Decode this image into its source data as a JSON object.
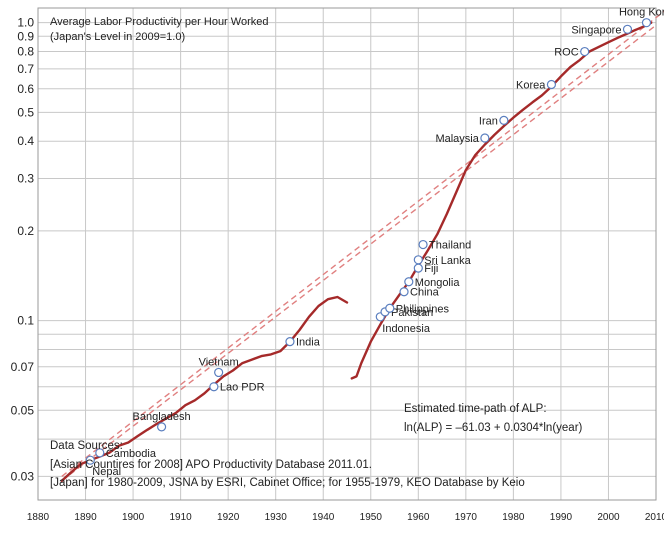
{
  "chart_data": {
    "type": "line",
    "title": "Average Labor Productivity per Hour Worked",
    "subtitle": "(Japan's Level in 2009=1.0)",
    "x_axis": {
      "min": 1880,
      "max": 2010,
      "ticks": [
        1880,
        1890,
        1900,
        1910,
        1920,
        1930,
        1940,
        1950,
        1960,
        1970,
        1980,
        1990,
        2000,
        2010
      ]
    },
    "y_axis": {
      "scale": "log",
      "min": 0.025,
      "max": 1.12,
      "gridlines": [
        0.03,
        0.04,
        0.05,
        0.06,
        0.07,
        0.08,
        0.09,
        0.1,
        0.2,
        0.3,
        0.4,
        0.5,
        0.6,
        0.7,
        0.8,
        0.9,
        1.0
      ],
      "tick_labels": [
        "1.0",
        "0.9",
        "0.8",
        "0.7",
        "0.6",
        "0.5",
        "0.4",
        "0.3",
        "0.2",
        "0.1",
        "0.07",
        "0.05",
        "0.03"
      ],
      "tick_values": [
        1.0,
        0.9,
        0.8,
        0.7,
        0.6,
        0.5,
        0.4,
        0.3,
        0.2,
        0.1,
        0.07,
        0.05,
        0.03
      ]
    },
    "grid": true,
    "series": [
      {
        "color": "#a52a2a",
        "segments": [
          {
            "x": [
              1885,
              1887,
              1889,
              1891,
              1893,
              1895,
              1897,
              1899,
              1901,
              1903,
              1905,
              1907,
              1909,
              1911,
              1913,
              1915,
              1917,
              1919,
              1921,
              1923,
              1925,
              1927,
              1929,
              1931,
              1933,
              1935,
              1937,
              1939,
              1941,
              1943,
              1945
            ],
            "y": [
              0.029,
              0.031,
              0.033,
              0.034,
              0.035,
              0.036,
              0.038,
              0.039,
              0.041,
              0.043,
              0.045,
              0.047,
              0.049,
              0.052,
              0.054,
              0.057,
              0.061,
              0.065,
              0.068,
              0.072,
              0.074,
              0.076,
              0.077,
              0.079,
              0.085,
              0.093,
              0.103,
              0.112,
              0.118,
              0.12,
              0.115
            ]
          },
          {
            "x": [
              1946,
              1947,
              1948,
              1950,
              1952,
              1954,
              1956,
              1958,
              1960,
              1962,
              1964,
              1966,
              1968,
              1970,
              1972,
              1974,
              1976,
              1978,
              1980,
              1982,
              1984,
              1986,
              1988,
              1990,
              1992,
              1994,
              1996,
              1998,
              2000,
              2002,
              2004,
              2006,
              2008,
              2009
            ],
            "y": [
              0.064,
              0.065,
              0.072,
              0.085,
              0.097,
              0.11,
              0.122,
              0.135,
              0.153,
              0.172,
              0.195,
              0.228,
              0.27,
              0.32,
              0.36,
              0.39,
              0.42,
              0.45,
              0.48,
              0.51,
              0.54,
              0.57,
              0.61,
              0.66,
              0.71,
              0.75,
              0.8,
              0.83,
              0.86,
              0.89,
              0.92,
              0.95,
              0.98,
              1.0
            ]
          }
        ]
      }
    ],
    "trend_lines": [
      {
        "x": [
          1885,
          2012
        ],
        "y": [
          0.03,
          1.1
        ],
        "color": "#e08080",
        "style": "dashed"
      },
      {
        "x": [
          1885,
          2010
        ],
        "y": [
          0.029,
          0.98
        ],
        "color": "#e08080",
        "style": "dashed"
      }
    ],
    "countries": [
      {
        "name": "Nepal",
        "x": 1891,
        "y": 0.034,
        "anchor": "below"
      },
      {
        "name": "Cambodia",
        "x": 1893,
        "y": 0.036,
        "anchor": "right"
      },
      {
        "name": "Bangladesh",
        "x": 1906,
        "y": 0.044,
        "anchor": "above"
      },
      {
        "name": "Lao PDR",
        "x": 1917,
        "y": 0.06,
        "anchor": "right"
      },
      {
        "name": "Vietnam",
        "x": 1918,
        "y": 0.067,
        "anchor": "above"
      },
      {
        "name": "India",
        "x": 1933,
        "y": 0.085,
        "anchor": "right"
      },
      {
        "name": "Indonesia",
        "x": 1952,
        "y": 0.103,
        "anchor": "below"
      },
      {
        "name": "Pakistan",
        "x": 1953,
        "y": 0.107,
        "anchor": "right"
      },
      {
        "name": "Philippines",
        "x": 1954,
        "y": 0.11,
        "anchor": "right"
      },
      {
        "name": "China",
        "x": 1957,
        "y": 0.125,
        "anchor": "right"
      },
      {
        "name": "Mongolia",
        "x": 1958,
        "y": 0.135,
        "anchor": "right"
      },
      {
        "name": "Fiji",
        "x": 1960,
        "y": 0.15,
        "anchor": "right"
      },
      {
        "name": "Sri Lanka",
        "x": 1960,
        "y": 0.16,
        "anchor": "right"
      },
      {
        "name": "Thailand",
        "x": 1961,
        "y": 0.18,
        "anchor": "right"
      },
      {
        "name": "Malaysia",
        "x": 1974,
        "y": 0.41,
        "anchor": "left"
      },
      {
        "name": "Iran",
        "x": 1978,
        "y": 0.47,
        "anchor": "left"
      },
      {
        "name": "Korea",
        "x": 1988,
        "y": 0.62,
        "anchor": "left"
      },
      {
        "name": "ROC",
        "x": 1995,
        "y": 0.8,
        "anchor": "left"
      },
      {
        "name": "Singapore",
        "x": 2004,
        "y": 0.95,
        "anchor": "left"
      },
      {
        "name": "Hong Kong",
        "x": 2008,
        "y": 1.0,
        "anchor": "above"
      }
    ],
    "annotations": {
      "equation_title": "Estimated time-path of ALP:",
      "equation": "ln(ALP) = –61.03 + 0.0304*ln(year)",
      "sources_title": "Data Sources:",
      "source_1": "[Asian Countires for 2008] APO Productivity Database 2011.01.",
      "source_2": "[Japan] for 1980-2009, JSNA by ESRI, Cabinet Office; for 1955-1979, KEO Database by Keio"
    }
  }
}
